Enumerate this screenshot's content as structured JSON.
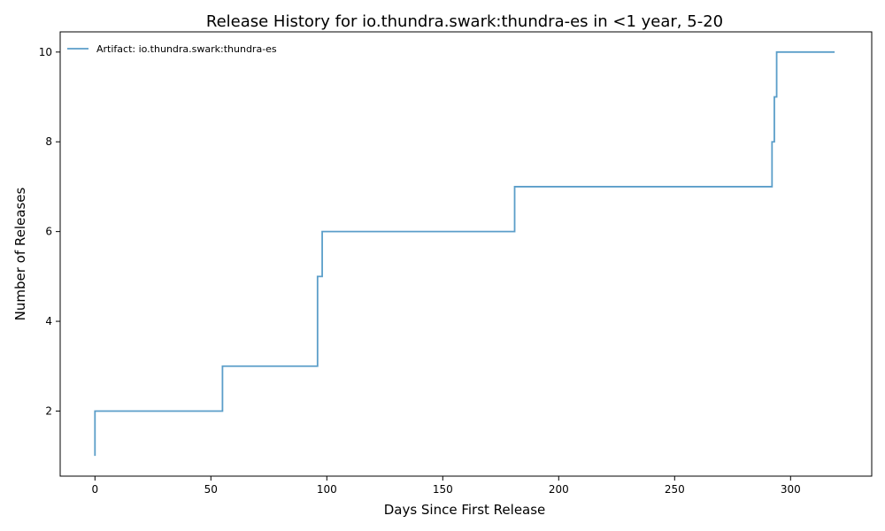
{
  "chart_data": {
    "type": "line",
    "title": "Release History for io.thundra.swark:thundra-es in <1 year, 5-20",
    "xlabel": "Days Since First Release",
    "ylabel": "Number of Releases",
    "xlim": [
      -15,
      335
    ],
    "ylim": [
      0.55,
      10.45
    ],
    "xticks": [
      0,
      50,
      100,
      150,
      200,
      250,
      300
    ],
    "yticks": [
      2,
      4,
      6,
      8,
      10
    ],
    "grid": false,
    "legend_position": "top-left",
    "series": [
      {
        "name": "Artifact: io.thundra.swark:thundra-es",
        "color": "#5b9ec9",
        "step": "post",
        "x": [
          0,
          0,
          55,
          96,
          98,
          181,
          292,
          293,
          294,
          319
        ],
        "y": [
          1,
          2,
          3,
          5,
          6,
          7,
          8,
          9,
          10,
          10
        ]
      }
    ]
  }
}
